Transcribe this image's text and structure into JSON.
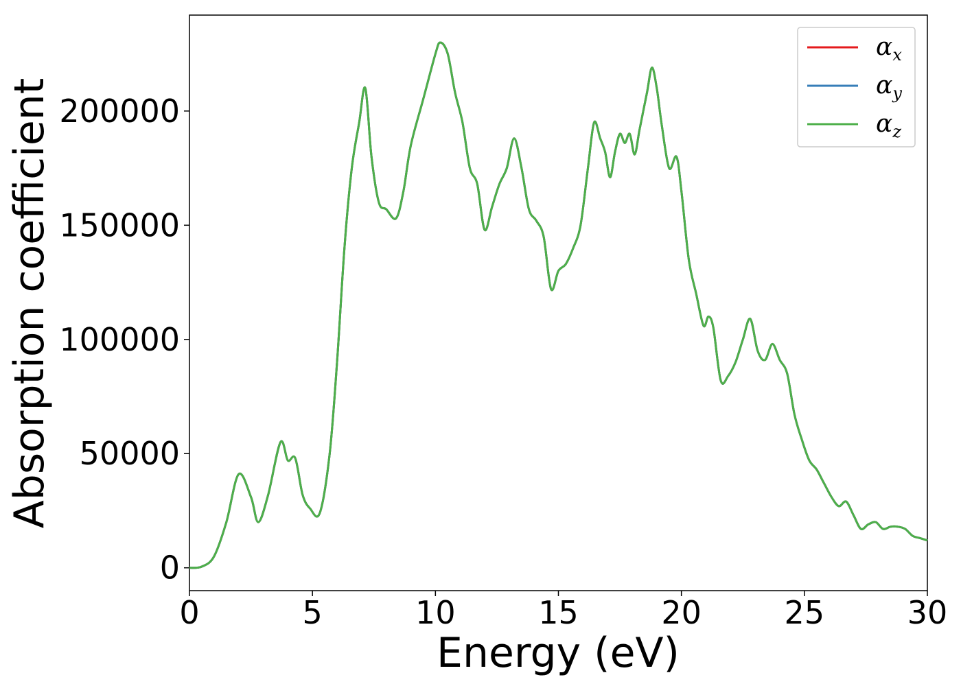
{
  "chart_data": {
    "type": "line",
    "xlabel": "Energy (eV)",
    "ylabel": "Absorption coefficient",
    "xlim": [
      0,
      30
    ],
    "ylim": [
      -10000,
      242000
    ],
    "xticks": [
      0,
      5,
      10,
      15,
      20,
      25,
      30
    ],
    "yticks": [
      0,
      50000,
      100000,
      150000,
      200000
    ],
    "xtick_labels": [
      "0",
      "5",
      "10",
      "15",
      "20",
      "25",
      "30"
    ],
    "ytick_labels": [
      "0",
      "50000",
      "100000",
      "150000",
      "200000"
    ],
    "grid": false,
    "legend_position": "top-right",
    "x": [
      0,
      0.5,
      1,
      1.5,
      2,
      2.5,
      2.8,
      3.2,
      3.7,
      4.0,
      4.3,
      4.6,
      4.9,
      5.3,
      5.7,
      6.0,
      6.3,
      6.6,
      6.9,
      7.15,
      7.4,
      7.7,
      8.0,
      8.4,
      8.7,
      9.0,
      9.5,
      10.0,
      10.2,
      10.5,
      10.8,
      11.1,
      11.4,
      11.7,
      12.0,
      12.3,
      12.6,
      12.9,
      13.2,
      13.5,
      13.8,
      14.1,
      14.4,
      14.7,
      15.0,
      15.3,
      15.6,
      15.9,
      16.2,
      16.45,
      16.7,
      16.9,
      17.1,
      17.3,
      17.5,
      17.7,
      17.9,
      18.1,
      18.3,
      18.6,
      18.8,
      19.0,
      19.2,
      19.5,
      19.8,
      20.0,
      20.3,
      20.6,
      20.9,
      21.1,
      21.3,
      21.6,
      21.9,
      22.2,
      22.5,
      22.8,
      23.1,
      23.4,
      23.7,
      24.0,
      24.3,
      24.6,
      24.9,
      25.2,
      25.5,
      25.8,
      26.1,
      26.4,
      26.7,
      27.0,
      27.3,
      27.6,
      27.9,
      28.2,
      28.5,
      28.8,
      29.1,
      29.4,
      29.7,
      30.0
    ],
    "series": [
      {
        "name": "αx",
        "color": "#e41a1c",
        "y": [
          0,
          500,
          5000,
          20000,
          41000,
          31000,
          20000,
          32000,
          55000,
          47000,
          48000,
          32000,
          26000,
          24000,
          50000,
          90000,
          140000,
          175000,
          195000,
          210000,
          180000,
          160000,
          157000,
          153000,
          165000,
          185000,
          205000,
          225000,
          230000,
          225000,
          208000,
          195000,
          175000,
          168000,
          148000,
          158000,
          168000,
          175000,
          188000,
          175000,
          157000,
          152000,
          145000,
          122000,
          130000,
          133000,
          140000,
          150000,
          175000,
          195000,
          188000,
          182000,
          171000,
          182000,
          190000,
          186000,
          190000,
          181000,
          192000,
          208000,
          219000,
          210000,
          194000,
          175000,
          180000,
          165000,
          135000,
          120000,
          106000,
          110000,
          105000,
          82000,
          84000,
          90000,
          100000,
          109000,
          95000,
          91000,
          98000,
          91000,
          85000,
          67000,
          56000,
          47000,
          43000,
          37000,
          31000,
          27000,
          29000,
          23000,
          17000,
          19000,
          20000,
          17000,
          18000,
          18000,
          17000,
          14000,
          13000,
          12000
        ]
      },
      {
        "name": "αy",
        "color": "#377eb8",
        "y": [
          0,
          500,
          5000,
          20000,
          41000,
          31000,
          20000,
          32000,
          55000,
          47000,
          48000,
          32000,
          26000,
          24000,
          50000,
          90000,
          140000,
          175000,
          195000,
          210000,
          180000,
          160000,
          157000,
          153000,
          165000,
          185000,
          205000,
          225000,
          230000,
          225000,
          208000,
          195000,
          175000,
          168000,
          148000,
          158000,
          168000,
          175000,
          188000,
          175000,
          157000,
          152000,
          145000,
          122000,
          130000,
          133000,
          140000,
          150000,
          175000,
          195000,
          188000,
          182000,
          171000,
          182000,
          190000,
          186000,
          190000,
          181000,
          192000,
          208000,
          219000,
          210000,
          194000,
          175000,
          180000,
          165000,
          135000,
          120000,
          106000,
          110000,
          105000,
          82000,
          84000,
          90000,
          100000,
          109000,
          95000,
          91000,
          98000,
          91000,
          85000,
          67000,
          56000,
          47000,
          43000,
          37000,
          31000,
          27000,
          29000,
          23000,
          17000,
          19000,
          20000,
          17000,
          18000,
          18000,
          17000,
          14000,
          13000,
          12000
        ]
      },
      {
        "name": "αz",
        "color": "#4daf4a",
        "y": [
          0,
          500,
          5000,
          20000,
          41000,
          31000,
          20000,
          32000,
          55000,
          47000,
          48000,
          32000,
          26000,
          24000,
          50000,
          90000,
          140000,
          175000,
          195000,
          210000,
          180000,
          160000,
          157000,
          153000,
          165000,
          185000,
          205000,
          225000,
          230000,
          225000,
          208000,
          195000,
          175000,
          168000,
          148000,
          158000,
          168000,
          175000,
          188000,
          175000,
          157000,
          152000,
          145000,
          122000,
          130000,
          133000,
          140000,
          150000,
          175000,
          195000,
          188000,
          182000,
          171000,
          182000,
          190000,
          186000,
          190000,
          181000,
          192000,
          208000,
          219000,
          210000,
          194000,
          175000,
          180000,
          165000,
          135000,
          120000,
          106000,
          110000,
          105000,
          82000,
          84000,
          90000,
          100000,
          109000,
          95000,
          91000,
          98000,
          91000,
          85000,
          67000,
          56000,
          47000,
          43000,
          37000,
          31000,
          27000,
          29000,
          23000,
          17000,
          19000,
          20000,
          17000,
          18000,
          18000,
          17000,
          14000,
          13000,
          12000
        ]
      }
    ],
    "legend": [
      {
        "symbol": "α",
        "sub": "x",
        "color": "#e41a1c"
      },
      {
        "symbol": "α",
        "sub": "y",
        "color": "#377eb8"
      },
      {
        "symbol": "α",
        "sub": "z",
        "color": "#4daf4a"
      }
    ]
  }
}
